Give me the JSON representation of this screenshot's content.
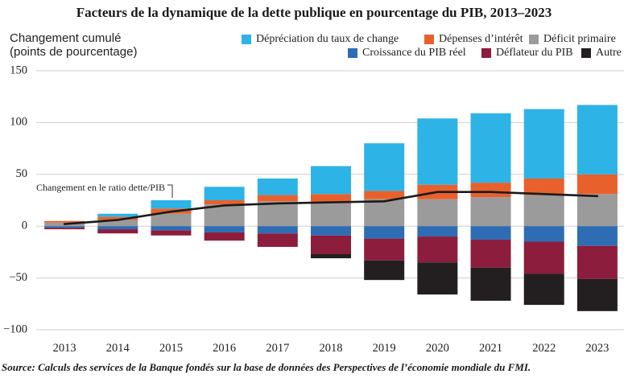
{
  "chart_data": {
    "type": "bar",
    "stacked": true,
    "title": "Facteurs de la dynamique de la dette publique en pourcentage du PIB, 2013–2023",
    "ylabel": [
      "Changement cumulé",
      "(points de pourcentage)"
    ],
    "categories": [
      "2013",
      "2014",
      "2015",
      "2016",
      "2017",
      "2018",
      "2019",
      "2020",
      "2021",
      "2022",
      "2023"
    ],
    "ylim": [
      -100,
      150
    ],
    "y_ticks": [
      150,
      100,
      50,
      0,
      -50,
      -100
    ],
    "y_tick_labels": [
      "150",
      "100",
      "50",
      "0",
      "−50",
      "−100"
    ],
    "grid": true,
    "legend_placement": "top-right",
    "series": [
      {
        "name": "Dépréciation du taux de change",
        "color": "#2EB3E6",
        "values": [
          0,
          3,
          8,
          13,
          16,
          27,
          46,
          64,
          67,
          67,
          67
        ]
      },
      {
        "name": "Dépenses d’intérêt",
        "color": "#E8612C",
        "values": [
          1.5,
          3,
          5,
          4,
          6,
          8,
          8,
          14,
          14,
          16,
          19
        ]
      },
      {
        "name": "Déficit primaire",
        "color": "#9B9B9B",
        "values": [
          3.5,
          6,
          12,
          21,
          24,
          23,
          26,
          26,
          28,
          30,
          31
        ]
      },
      {
        "name": "Croissance du PIB réel",
        "color": "#2E6DB4",
        "values": [
          -1.5,
          -3,
          -4,
          -6,
          -7,
          -9,
          -12,
          -10,
          -13,
          -15,
          -19
        ]
      },
      {
        "name": "Déflateur du PIB",
        "color": "#8C1D3C",
        "values": [
          -1.5,
          -4,
          -5,
          -8,
          -13,
          -18,
          -21,
          -25,
          -27,
          -31,
          -32
        ]
      },
      {
        "name": "Autre",
        "color": "#231F20",
        "values": [
          0,
          0,
          0,
          0,
          0,
          -4,
          -19,
          -31,
          -32,
          -30,
          -31
        ]
      }
    ],
    "line": {
      "name": "Changement en le ratio dette/PIB",
      "color": "#1A1A1A",
      "values": [
        2,
        6,
        14,
        20,
        22,
        23,
        24,
        33,
        33,
        31,
        29
      ]
    }
  },
  "source": {
    "label": "Source:",
    "text": "Calculs des services de la Banque fondés sur la base de données des Perspectives de l’économie mondiale du FMI."
  }
}
